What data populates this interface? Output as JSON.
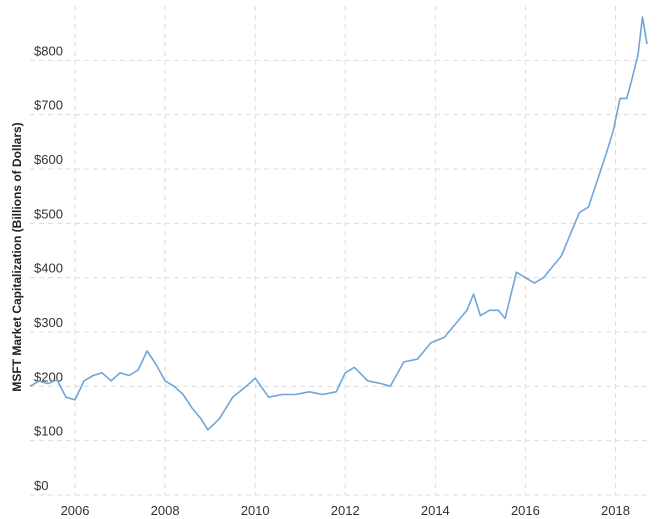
{
  "chart_data": {
    "type": "line",
    "title": "",
    "xlabel": "",
    "ylabel": "MSFT Market Capitalization (Billions of Dollars)",
    "grid": true,
    "xlim": [
      2005.0,
      2018.7
    ],
    "ylim": [
      0,
      900
    ],
    "y_ticks": [
      {
        "value": 0,
        "label": "$0"
      },
      {
        "value": 100,
        "label": "$100"
      },
      {
        "value": 200,
        "label": "$200"
      },
      {
        "value": 300,
        "label": "$300"
      },
      {
        "value": 400,
        "label": "$400"
      },
      {
        "value": 500,
        "label": "$500"
      },
      {
        "value": 600,
        "label": "$600"
      },
      {
        "value": 700,
        "label": "$700"
      },
      {
        "value": 800,
        "label": "$800"
      }
    ],
    "x_ticks": [
      {
        "value": 2006,
        "label": "2006"
      },
      {
        "value": 2008,
        "label": "2008"
      },
      {
        "value": 2010,
        "label": "2010"
      },
      {
        "value": 2012,
        "label": "2012"
      },
      {
        "value": 2014,
        "label": "2014"
      },
      {
        "value": 2016,
        "label": "2016"
      },
      {
        "value": 2018,
        "label": "2018"
      }
    ],
    "colors": {
      "line": "#6fa5d8",
      "grid": "#dcdcdc",
      "text": "#333333"
    },
    "series": [
      {
        "x": [
          2005.0,
          2005.2,
          2005.4,
          2005.6,
          2005.8,
          2006.0,
          2006.2,
          2006.4,
          2006.6,
          2006.8,
          2007.0,
          2007.2,
          2007.4,
          2007.6,
          2007.8,
          2008.0,
          2008.2,
          2008.4,
          2008.6,
          2008.8,
          2008.95,
          2009.2,
          2009.5,
          2009.8,
          2010.0,
          2010.3,
          2010.6,
          2010.9,
          2011.2,
          2011.5,
          2011.8,
          2012.0,
          2012.2,
          2012.5,
          2012.8,
          2013.0,
          2013.3,
          2013.6,
          2013.9,
          2014.2,
          2014.5,
          2014.7,
          2014.85,
          2015.0,
          2015.2,
          2015.4,
          2015.55,
          2015.8,
          2016.0,
          2016.2,
          2016.4,
          2016.6,
          2016.8,
          2017.0,
          2017.2,
          2017.4,
          2017.6,
          2017.8,
          2017.95,
          2018.1,
          2018.25,
          2018.35,
          2018.5,
          2018.6,
          2018.7
        ],
        "values": [
          200,
          210,
          205,
          212,
          180,
          175,
          210,
          220,
          225,
          210,
          225,
          220,
          230,
          265,
          240,
          210,
          200,
          185,
          160,
          140,
          120,
          140,
          180,
          200,
          215,
          180,
          185,
          185,
          190,
          185,
          190,
          225,
          235,
          210,
          205,
          200,
          245,
          250,
          280,
          290,
          320,
          340,
          370,
          330,
          340,
          340,
          325,
          410,
          400,
          390,
          400,
          420,
          440,
          480,
          520,
          530,
          580,
          630,
          670,
          730,
          730,
          760,
          810,
          880,
          830
        ]
      }
    ]
  }
}
